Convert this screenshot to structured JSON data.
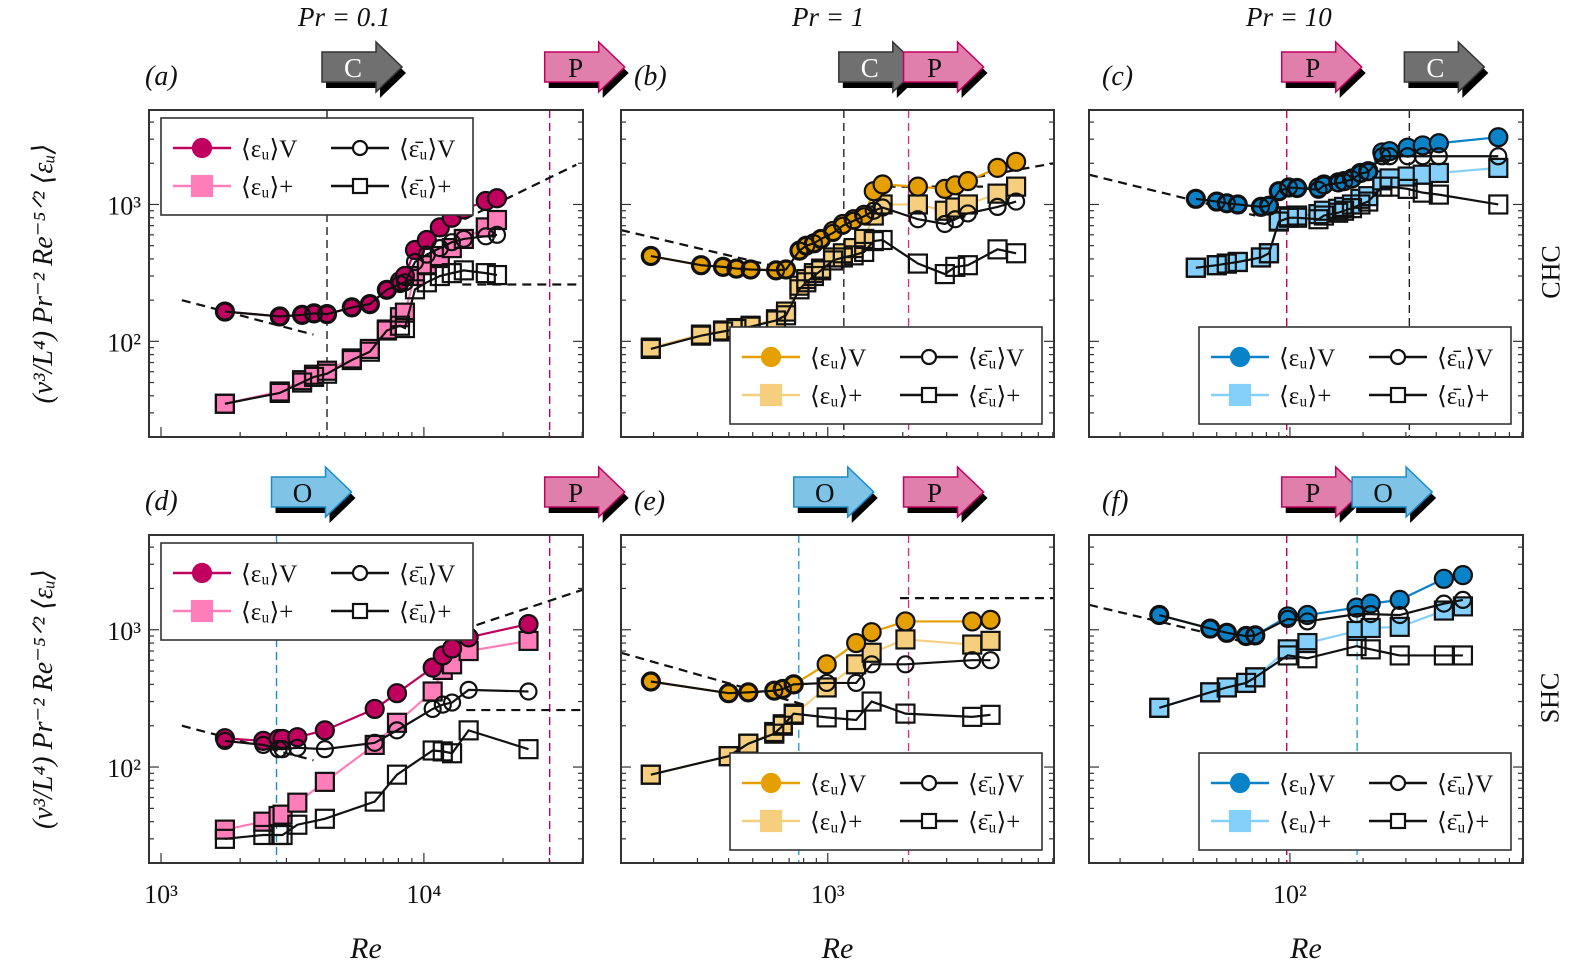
{
  "figure": {
    "column_titles": [
      "Pr = 0.1",
      "Pr = 1",
      "Pr = 10"
    ],
    "row_labels": [
      "CHC",
      "SHC"
    ],
    "ylabel": "(ν³/L⁴) Pr⁻² Re⁻⁵ᐟ² ⟨εᵤ⟩",
    "xlabel": "Re",
    "regime_arrows": {
      "C": {
        "label": "C",
        "fill": "#707070",
        "text_color": "#ffffff",
        "stroke": "#333333"
      },
      "P": {
        "label": "P",
        "fill": "#e07fac",
        "text_color": "#111111",
        "stroke": "#c0005e"
      },
      "O": {
        "label": "O",
        "fill": "#7fc3e6",
        "text_color": "#111111",
        "stroke": "#1a8cc8"
      }
    },
    "legend_entries": [
      "⟨εᵤ⟩V",
      "⟨εᵤ⟩+",
      "⟨ε̄ᵤ⟩V",
      "⟨ε̄ᵤ⟩+"
    ]
  },
  "chart_data": [
    {
      "panel": "(a)",
      "type": "line",
      "title": "Pr = 0.1, CHC",
      "xlabel": "",
      "ylabel": "(ν³/L⁴) Pr⁻² Re⁻⁵ᐟ² ⟨εᵤ⟩",
      "xscale": "log",
      "yscale": "log",
      "xlim": [
        900,
        40300
      ],
      "ylim": [
        20,
        4900
      ],
      "xticks": [],
      "yticks": [
        "10²",
        "10³"
      ],
      "colors": {
        "full": "#c0005e",
        "plus": "#ff7eb9"
      },
      "legend": "top-left",
      "arrows": [
        {
          "type": "C",
          "at": 4280
        },
        {
          "type": "P",
          "at": 30100
        }
      ],
      "vlines": [
        {
          "x": 4280,
          "color": "#222222"
        },
        {
          "x": 30100,
          "color": "#c0005e"
        }
      ],
      "guides": [
        {
          "points": [
            [
              1200,
              200
            ],
            [
              3800,
              112
            ]
          ]
        },
        {
          "points": [
            [
              10000,
              560
            ],
            [
              38000,
              1950
            ]
          ]
        },
        {
          "points": [
            [
              14000,
              260
            ],
            [
              40000,
              260
            ]
          ]
        }
      ],
      "x": [
        1750,
        2830,
        3440,
        3820,
        4280,
        5320,
        6230,
        7230,
        8110,
        8470,
        9250,
        10260,
        11500,
        12770,
        14190,
        17200,
        18970
      ],
      "series": [
        {
          "name": "⟨εᵤ⟩V",
          "values": [
            165,
            152,
            156,
            160,
            158,
            177,
            187,
            238,
            275,
            300,
            465,
            550,
            680,
            800,
            920,
            1060,
            1110
          ]
        },
        {
          "name": "⟨ε̄ᵤ⟩V",
          "values": [
            165,
            152,
            156,
            160,
            158,
            177,
            187,
            238,
            262,
            270,
            380,
            430,
            480,
            530,
            560,
            585,
            600
          ]
        },
        {
          "name": "⟨εᵤ⟩+",
          "values": [
            35,
            43,
            52,
            57,
            61,
            75,
            88,
            122,
            150,
            162,
            300,
            360,
            420,
            480,
            560,
            680,
            770
          ]
        },
        {
          "name": "⟨ε̄ᵤ⟩+",
          "values": [
            35,
            42,
            50,
            55,
            58,
            73,
            84,
            120,
            130,
            125,
            240,
            270,
            300,
            315,
            330,
            315,
            305
          ]
        }
      ]
    },
    {
      "panel": "(b)",
      "type": "line",
      "title": "Pr = 1, CHC",
      "xlabel": "",
      "ylabel": "",
      "xscale": "log",
      "yscale": "log",
      "xlim": [
        148,
        8090
      ],
      "ylim": [
        20,
        4900
      ],
      "yticks": [
        "10²",
        "10³"
      ],
      "colors": {
        "full": "#e69f00",
        "plus": "#f5cf7e"
      },
      "legend": "bottom-right",
      "arrows": [
        {
          "type": "C",
          "at": 1160
        },
        {
          "type": "P",
          "at": 2110
        }
      ],
      "vlines": [
        {
          "x": 1160,
          "color": "#222222"
        },
        {
          "x": 2110,
          "color": "#d6337f"
        }
      ],
      "guides": [
        {
          "points": [
            [
              148,
              650
            ],
            [
              900,
              300
            ]
          ]
        },
        {
          "points": [
            [
              1500,
              1350
            ],
            [
              4200,
              1350
            ]
          ]
        },
        {
          "points": [
            [
              3000,
              1450
            ],
            [
              8090,
              2000
            ]
          ]
        }
      ],
      "x": [
        195,
        310,
        380,
        430,
        490,
        620,
        680,
        770,
        820,
        880,
        940,
        1050,
        1150,
        1270,
        1400,
        1530,
        1660,
        2300,
        2950,
        3250,
        3650,
        4800,
        5700
      ],
      "series": [
        {
          "name": "⟨εᵤ⟩V",
          "values": [
            420,
            360,
            350,
            340,
            335,
            330,
            335,
            460,
            500,
            520,
            560,
            640,
            720,
            780,
            840,
            1250,
            1400,
            1350,
            1300,
            1380,
            1480,
            1850,
            2050
          ]
        },
        {
          "name": "⟨ε̄ᵤ⟩V",
          "values": [
            420,
            360,
            350,
            340,
            335,
            330,
            335,
            460,
            500,
            520,
            560,
            620,
            700,
            760,
            820,
            900,
            950,
            780,
            720,
            780,
            860,
            960,
            1050
          ]
        },
        {
          "name": "⟨εᵤ⟩+",
          "values": [
            90,
            112,
            120,
            125,
            130,
            145,
            165,
            255,
            285,
            315,
            340,
            410,
            440,
            480,
            560,
            830,
            1000,
            1000,
            900,
            950,
            1000,
            1200,
            1350
          ]
        },
        {
          "name": "⟨ε̄ᵤ⟩+",
          "values": [
            88,
            110,
            118,
            123,
            128,
            142,
            155,
            240,
            270,
            300,
            330,
            390,
            410,
            425,
            450,
            540,
            550,
            370,
            310,
            350,
            360,
            470,
            440
          ]
        }
      ]
    },
    {
      "panel": "(c)",
      "type": "line",
      "title": "Pr = 10, CHC",
      "xlabel": "",
      "ylabel": "",
      "xscale": "log",
      "yscale": "log",
      "xlim": [
        14.9,
        910
      ],
      "ylim": [
        20,
        4900
      ],
      "yticks": [
        "10²",
        "10³"
      ],
      "colors": {
        "full": "#0a82c8",
        "plus": "#85d0fa"
      },
      "legend": "bottom-right",
      "arrows": [
        {
          "type": "P",
          "at": 97
        },
        {
          "type": "C",
          "at": 310
        }
      ],
      "vlines": [
        {
          "x": 97,
          "color": "#c0005e"
        },
        {
          "x": 310,
          "color": "#222222"
        }
      ],
      "guides": [
        {
          "points": [
            [
              14.9,
              1650
            ],
            [
              72,
              830
            ]
          ]
        }
      ],
      "x": [
        41,
        50,
        55,
        61,
        76,
        82,
        90,
        99,
        107,
        131,
        138,
        158,
        167,
        180,
        195,
        210,
        240,
        257,
        305,
        352,
        410,
        720
      ],
      "series": [
        {
          "name": "⟨εᵤ⟩V",
          "values": [
            1100,
            1050,
            1020,
            1000,
            960,
            980,
            1250,
            1330,
            1320,
            1330,
            1400,
            1450,
            1480,
            1550,
            1700,
            1750,
            2400,
            2450,
            2600,
            2700,
            2800,
            3100
          ]
        },
        {
          "name": "⟨ε̄ᵤ⟩V",
          "values": [
            1100,
            1050,
            1020,
            1000,
            960,
            980,
            1250,
            1330,
            1320,
            1280,
            1380,
            1430,
            1460,
            1530,
            1680,
            1730,
            2250,
            2250,
            2250,
            2250,
            2250,
            2250
          ]
        },
        {
          "name": "⟨εᵤ⟩+",
          "values": [
            345,
            360,
            370,
            380,
            410,
            440,
            760,
            820,
            830,
            850,
            900,
            930,
            960,
            1000,
            1100,
            1150,
            1500,
            1550,
            1600,
            1650,
            1700,
            1850
          ]
        },
        {
          "name": "⟨ε̄ᵤ⟩+",
          "values": [
            345,
            360,
            370,
            380,
            410,
            440,
            750,
            800,
            800,
            780,
            830,
            870,
            900,
            940,
            1000,
            1050,
            1350,
            1350,
            1300,
            1220,
            1180,
            1000
          ]
        }
      ]
    },
    {
      "panel": "(d)",
      "type": "line",
      "title": "Pr = 0.1, SHC",
      "xlabel": "Re",
      "ylabel": "(ν³/L⁴) Pr⁻² Re⁻⁵ᐟ² ⟨εᵤ⟩",
      "xscale": "log",
      "yscale": "log",
      "xlim": [
        900,
        40300
      ],
      "ylim": [
        20,
        4900
      ],
      "xticks": [
        "10³",
        "10⁴"
      ],
      "yticks": [
        "10²",
        "10³"
      ],
      "colors": {
        "full": "#c0005e",
        "plus": "#ff7eb9"
      },
      "legend": "top-left",
      "arrows": [
        {
          "type": "O",
          "at": 2750
        },
        {
          "type": "P",
          "at": 30100
        }
      ],
      "vlines": [
        {
          "x": 2750,
          "color": "#1a8cc8"
        },
        {
          "x": 30100,
          "color": "#c0005e"
        }
      ],
      "guides": [
        {
          "points": [
            [
              1200,
              200
            ],
            [
              3800,
              112
            ]
          ]
        },
        {
          "points": [
            [
              14000,
              1000
            ],
            [
              40000,
              1950
            ]
          ]
        },
        {
          "points": [
            [
              14500,
              260
            ],
            [
              40000,
              260
            ]
          ]
        }
      ],
      "x": [
        1750,
        2450,
        2800,
        2900,
        3300,
        4200,
        6500,
        7900,
        10800,
        11800,
        12800,
        14800,
        25000
      ],
      "series": [
        {
          "name": "⟨εᵤ⟩V",
          "values": [
            162,
            155,
            160,
            160,
            165,
            185,
            265,
            345,
            530,
            650,
            730,
            880,
            1100
          ]
        },
        {
          "name": "⟨ε̄ᵤ⟩V",
          "values": [
            155,
            145,
            135,
            135,
            138,
            135,
            150,
            185,
            265,
            285,
            295,
            365,
            355
          ]
        },
        {
          "name": "⟨εᵤ⟩+",
          "values": [
            35,
            40,
            44,
            45,
            55,
            78,
            145,
            210,
            355,
            510,
            560,
            700,
            830
          ]
        },
        {
          "name": "⟨ε̄ᵤ⟩+",
          "values": [
            30,
            32,
            32,
            32,
            38,
            42,
            56,
            88,
            132,
            130,
            126,
            185,
            135
          ]
        }
      ]
    },
    {
      "panel": "(e)",
      "type": "line",
      "title": "Pr = 1, SHC",
      "xlabel": "Re",
      "ylabel": "",
      "xscale": "log",
      "yscale": "log",
      "xlim": [
        148,
        8090
      ],
      "ylim": [
        20,
        4900
      ],
      "xticks": [
        "10³"
      ],
      "yticks": [
        "10²",
        "10³"
      ],
      "colors": {
        "full": "#e69f00",
        "plus": "#f5cf7e"
      },
      "legend": "bottom-right",
      "arrows": [
        {
          "type": "O",
          "at": 765
        },
        {
          "type": "P",
          "at": 2110
        }
      ],
      "vlines": [
        {
          "x": 765,
          "color": "#2a9fd6"
        },
        {
          "x": 2110,
          "color": "#d6337f"
        }
      ],
      "guides": [
        {
          "points": [
            [
              148,
              680
            ],
            [
              830,
              280
            ]
          ]
        },
        {
          "points": [
            [
              1950,
              1700
            ],
            [
              8090,
              1700
            ]
          ]
        }
      ],
      "x": [
        195,
        400,
        480,
        610,
        660,
        730,
        990,
        1300,
        1500,
        2050,
        3800,
        4500
      ],
      "series": [
        {
          "name": "⟨εᵤ⟩V",
          "values": [
            420,
            345,
            350,
            360,
            370,
            400,
            560,
            800,
            960,
            1150,
            1150,
            1180
          ]
        },
        {
          "name": "⟨ε̄ᵤ⟩V",
          "values": [
            420,
            345,
            350,
            360,
            370,
            400,
            410,
            410,
            560,
            560,
            600,
            600
          ]
        },
        {
          "name": "⟨εᵤ⟩+",
          "values": [
            88,
            120,
            148,
            180,
            205,
            240,
            380,
            560,
            680,
            850,
            780,
            830
          ]
        },
        {
          "name": "⟨ε̄ᵤ⟩+",
          "values": [
            88,
            120,
            148,
            175,
            200,
            245,
            230,
            220,
            300,
            245,
            232,
            240
          ]
        }
      ]
    },
    {
      "panel": "(f)",
      "type": "line",
      "title": "Pr = 10, SHC",
      "xlabel": "Re",
      "ylabel": "",
      "xscale": "log",
      "yscale": "log",
      "xlim": [
        14.9,
        910
      ],
      "ylim": [
        20,
        4900
      ],
      "xticks": [
        "10²"
      ],
      "yticks": [
        "10²",
        "10³"
      ],
      "colors": {
        "full": "#0a82c8",
        "plus": "#85d0fa"
      },
      "legend": "bottom-right",
      "arrows": [
        {
          "type": "P",
          "at": 97
        },
        {
          "type": "O",
          "at": 189
        }
      ],
      "vlines": [
        {
          "x": 97,
          "color": "#c0005e"
        },
        {
          "x": 189,
          "color": "#2a9fd6"
        }
      ],
      "guides": [
        {
          "points": [
            [
              14.9,
              1520
            ],
            [
              72,
              780
            ]
          ]
        }
      ],
      "x": [
        29,
        47,
        55,
        66,
        72,
        98,
        118,
        188,
        215,
        283,
        430,
        515
      ],
      "series": [
        {
          "name": "⟨εᵤ⟩V",
          "values": [
            1280,
            1020,
            950,
            900,
            910,
            1250,
            1280,
            1450,
            1550,
            1650,
            2350,
            2500
          ]
        },
        {
          "name": "⟨ε̄ᵤ⟩V",
          "values": [
            1280,
            1020,
            950,
            900,
            910,
            1200,
            1150,
            1300,
            1300,
            1280,
            1550,
            1650
          ]
        },
        {
          "name": "⟨εᵤ⟩+",
          "values": [
            270,
            350,
            380,
            410,
            450,
            720,
            800,
            980,
            1030,
            1050,
            1380,
            1480
          ]
        },
        {
          "name": "⟨ε̄ᵤ⟩+",
          "values": [
            270,
            350,
            380,
            410,
            450,
            650,
            620,
            760,
            720,
            650,
            650,
            650
          ]
        }
      ]
    }
  ]
}
